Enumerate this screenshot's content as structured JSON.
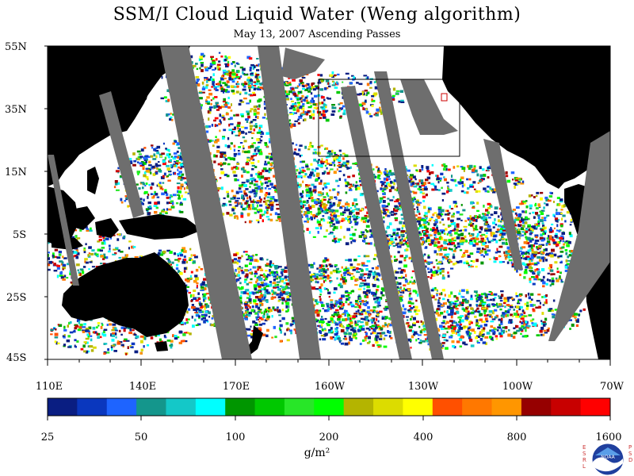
{
  "title": "SSM/I Cloud Liquid Water (Weng algorithm)",
  "subtitle": "May 13, 2007  Ascending Passes",
  "lat_labels": [
    "55N",
    "35N",
    "15N",
    "5S",
    "25S",
    "45S"
  ],
  "lon_labels": [
    "110E",
    "140E",
    "170E",
    "160W",
    "130W",
    "100W",
    "70W"
  ],
  "colorbar": {
    "labels": [
      "25",
      "50",
      "100",
      "200",
      "400",
      "800",
      "1600"
    ],
    "units": "g/m²",
    "colors": [
      "#0a1e82",
      "#0a37be",
      "#1e64ff",
      "#14968c",
      "#14c8c8",
      "#00ffff",
      "#009600",
      "#00c800",
      "#28e628",
      "#00ff00",
      "#b4b400",
      "#dcdc00",
      "#ffff00",
      "#ff5000",
      "#ff7800",
      "#ff9600",
      "#960000",
      "#c80000",
      "#ff0000"
    ]
  },
  "logo": {
    "name": "noaa-logo",
    "left_letters": "E S R L",
    "right_letters": "P S D",
    "text": "NOAA"
  },
  "colors": {
    "land": "#000000",
    "gap": "#6e6e6e",
    "ocean": "#ffffff",
    "box": "#000000"
  }
}
